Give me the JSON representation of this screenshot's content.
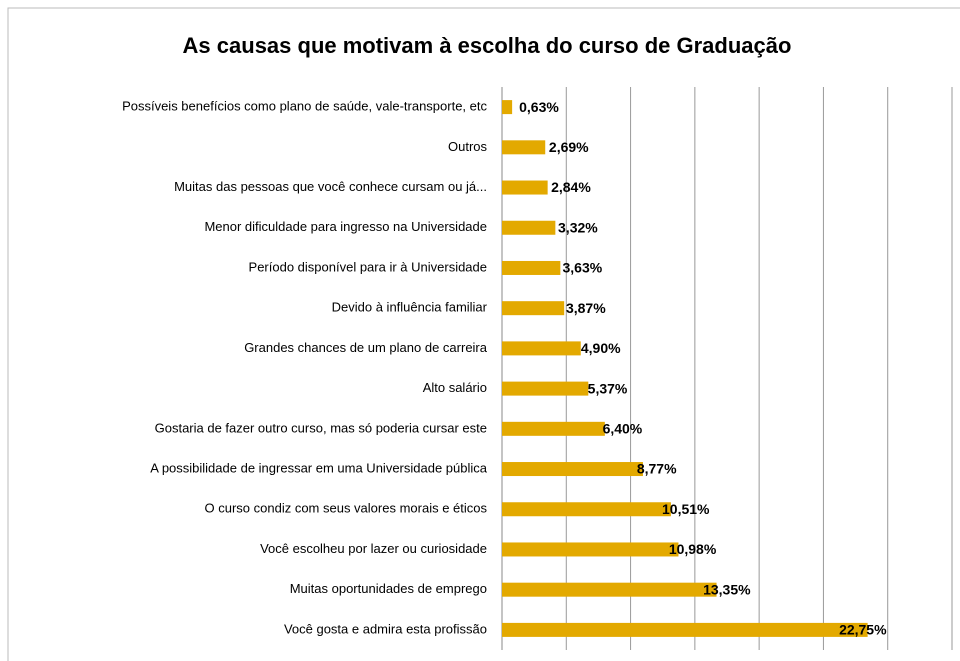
{
  "chart_data": {
    "type": "hbar",
    "title": "As causas que motivam à escolha do curso de Graduação",
    "categories": [
      "Possíveis benefícios como plano de saúde, vale-transporte, etc",
      "Outros",
      "Muitas das pessoas que você conhece cursam ou já...",
      "Menor dificuldade para ingresso na Universidade",
      "Período disponível para ir à Universidade",
      "Devido à influência familiar",
      "Grandes chances de um plano de carreira",
      "Alto salário",
      "Gostaria de fazer outro curso, mas só poderia cursar este",
      "A possibilidade de ingressar em uma Universidade pública",
      "O curso condiz com seus valores morais e éticos",
      "Você escolheu por lazer ou curiosidade",
      "Muitas oportunidades de emprego",
      "Você gosta e admira esta profissão"
    ],
    "values": [
      0.63,
      2.69,
      2.84,
      3.32,
      3.63,
      3.87,
      4.9,
      5.37,
      6.4,
      8.77,
      10.51,
      10.98,
      13.35,
      22.75
    ],
    "value_labels": [
      "0,63%",
      "2,69%",
      "2,84%",
      "3,32%",
      "3,63%",
      "3,87%",
      "4,90%",
      "5,37%",
      "6,40%",
      "8,77%",
      "10,51%",
      "10,98%",
      "13,35%",
      "22,75%"
    ],
    "color": "#e3a900",
    "xlim": [
      0,
      28
    ],
    "xticks": [
      0,
      4,
      8,
      12,
      16,
      20,
      24,
      28
    ],
    "grid": true
  }
}
